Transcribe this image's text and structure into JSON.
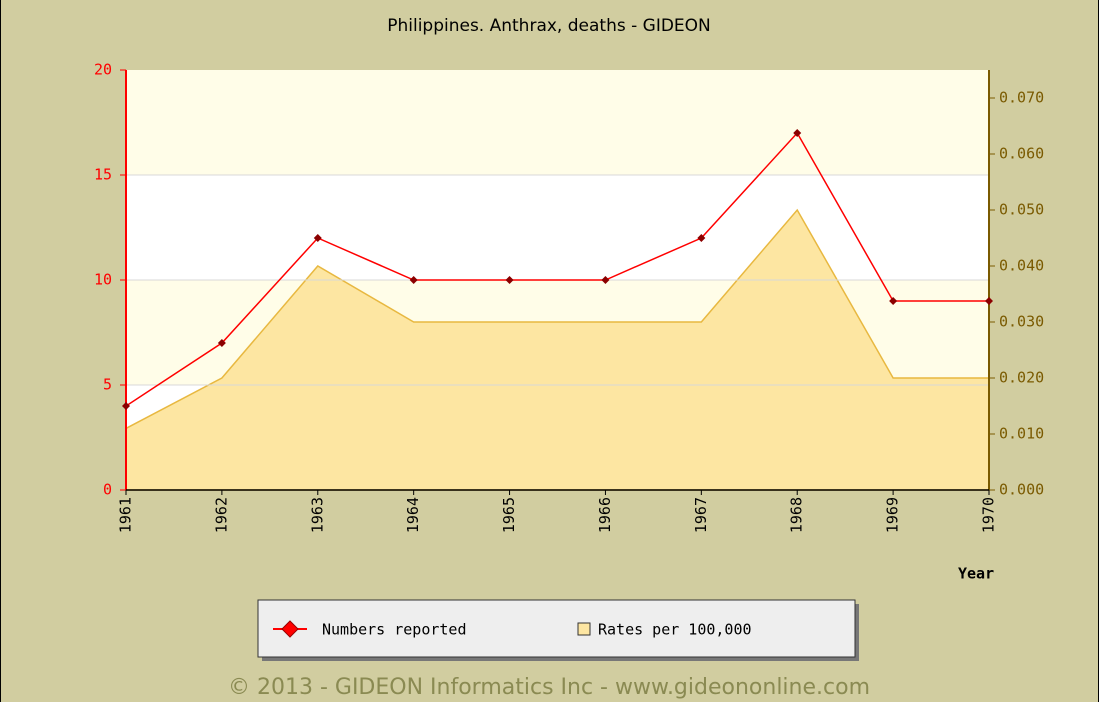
{
  "chart_data": {
    "type": "line",
    "title": "Philippines. Anthrax, deaths - GIDEON",
    "x_label": "Year",
    "categories": [
      "1961",
      "1962",
      "1963",
      "1964",
      "1965",
      "1966",
      "1967",
      "1968",
      "1969",
      "1970"
    ],
    "series": [
      {
        "name": "Numbers reported",
        "color": "#ff0000",
        "values": [
          4,
          7,
          12,
          10,
          10,
          10,
          12,
          17,
          9,
          9
        ]
      },
      {
        "name": "Rates per 100,000",
        "color": "#fde6a2",
        "axis": "y2",
        "values": [
          0.011,
          0.02,
          0.04,
          0.03,
          0.03,
          0.03,
          0.03,
          0.05,
          0.02,
          0.02
        ]
      }
    ],
    "ylim": [
      0,
      20
    ],
    "yticks": [
      0,
      5,
      10,
      15,
      20
    ],
    "y2lim": [
      0,
      0.075
    ],
    "y2ticks": [
      {
        "value": 0,
        "label": "0.000"
      },
      {
        "value": 0.01,
        "label": "0.010"
      },
      {
        "value": 0.02,
        "label": "0.020"
      },
      {
        "value": 0.03,
        "label": "0.030"
      },
      {
        "value": 0.04,
        "label": "0.040"
      },
      {
        "value": 0.05,
        "label": "0.050"
      },
      {
        "value": 0.06,
        "label": "0.060"
      },
      {
        "value": 0.07,
        "label": "0.070"
      }
    ],
    "grid": true,
    "legend": "bottom",
    "footer": "© 2013 - GIDEON Informatics Inc - www.gideononline.com"
  }
}
